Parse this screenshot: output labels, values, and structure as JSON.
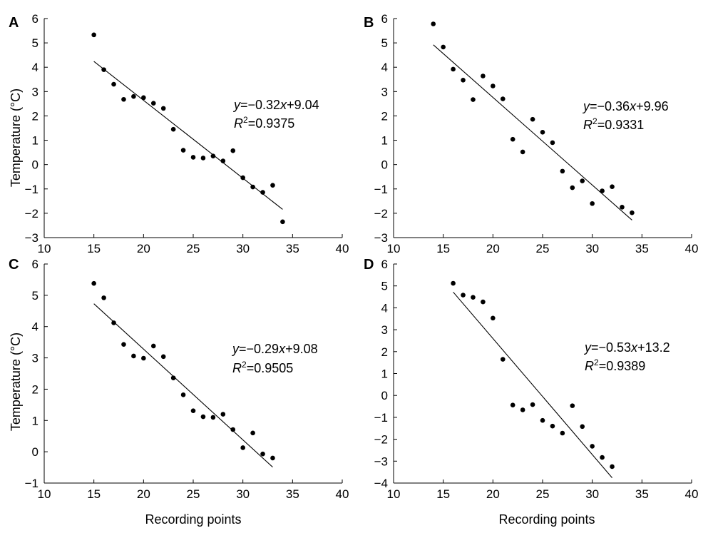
{
  "x_axis_label": "Recording points",
  "y_axis_label": "Temperature (°C)",
  "chart_data": [
    {
      "panel": "A",
      "type": "scatter",
      "xlim": [
        10,
        40
      ],
      "ylim": [
        -3,
        6
      ],
      "x_ticks": [
        10,
        15,
        20,
        25,
        30,
        35,
        40
      ],
      "y_ticks": [
        -3,
        -2,
        -1,
        0,
        1,
        2,
        3,
        4,
        5,
        6
      ],
      "x": [
        15,
        16,
        17,
        18,
        19,
        20,
        21,
        22,
        23,
        24,
        25,
        26,
        27,
        28,
        29,
        30,
        31,
        32,
        33,
        34
      ],
      "y": [
        5.33,
        3.9,
        3.3,
        2.68,
        2.8,
        2.75,
        2.52,
        2.31,
        1.45,
        0.59,
        0.3,
        0.27,
        0.35,
        0.15,
        0.57,
        -0.54,
        -0.92,
        -1.14,
        -0.85,
        -2.35
      ],
      "fit": {
        "slope": -0.32,
        "intercept": 9.04,
        "x_range": [
          15,
          34
        ]
      },
      "equation": {
        "y": "y",
        "eq": "=−0.32",
        "x": "x",
        "rest": "+9.04"
      },
      "r2": {
        "r": "R",
        "sup": "2",
        "value": "=0.9375"
      }
    },
    {
      "panel": "B",
      "type": "scatter",
      "xlim": [
        10,
        40
      ],
      "ylim": [
        -3,
        6
      ],
      "x_ticks": [
        10,
        15,
        20,
        25,
        30,
        35,
        40
      ],
      "y_ticks": [
        -3,
        -2,
        -1,
        0,
        1,
        2,
        3,
        4,
        5,
        6
      ],
      "x": [
        14,
        15,
        16,
        17,
        18,
        19,
        20,
        21,
        22,
        23,
        24,
        25,
        26,
        27,
        28,
        29,
        30,
        31,
        32,
        33,
        34
      ],
      "y": [
        5.78,
        4.83,
        3.92,
        3.47,
        2.67,
        3.64,
        3.23,
        2.7,
        1.04,
        0.52,
        1.86,
        1.33,
        0.9,
        -0.27,
        -0.95,
        -0.67,
        -1.6,
        -1.08,
        -0.91,
        -1.75,
        -1.98
      ],
      "fit": {
        "slope": -0.36,
        "intercept": 9.96,
        "x_range": [
          14,
          34
        ]
      },
      "equation": {
        "y": "y",
        "eq": "=−0.36",
        "x": "x",
        "rest": "+9.96"
      },
      "r2": {
        "r": "R",
        "sup": "2",
        "value": "=0.9331"
      }
    },
    {
      "panel": "C",
      "type": "scatter",
      "xlim": [
        10,
        40
      ],
      "ylim": [
        -1,
        6
      ],
      "x_ticks": [
        10,
        15,
        20,
        25,
        30,
        35,
        40
      ],
      "y_ticks": [
        -1,
        0,
        1,
        2,
        3,
        4,
        5,
        6
      ],
      "x": [
        15,
        16,
        17,
        18,
        19,
        20,
        21,
        22,
        23,
        24,
        25,
        26,
        27,
        28,
        29,
        30,
        31,
        32,
        33
      ],
      "y": [
        5.38,
        4.92,
        4.12,
        3.43,
        3.06,
        2.99,
        3.38,
        3.04,
        2.36,
        1.82,
        1.31,
        1.12,
        1.1,
        1.2,
        0.71,
        0.13,
        0.6,
        -0.07,
        -0.2
      ],
      "fit": {
        "slope": -0.29,
        "intercept": 9.08,
        "x_range": [
          15,
          33
        ]
      },
      "equation": {
        "y": "y",
        "eq": "=−0.29",
        "x": "x",
        "rest": "+9.08"
      },
      "r2": {
        "r": "R",
        "sup": "2",
        "value": "=0.9505"
      }
    },
    {
      "panel": "D",
      "type": "scatter",
      "xlim": [
        10,
        40
      ],
      "ylim": [
        -4,
        6
      ],
      "x_ticks": [
        10,
        15,
        20,
        25,
        30,
        35,
        40
      ],
      "y_ticks": [
        -4,
        -3,
        -2,
        -1,
        0,
        1,
        2,
        3,
        4,
        5,
        6
      ],
      "x": [
        16,
        17,
        18,
        19,
        20,
        21,
        22,
        23,
        24,
        25,
        26,
        27,
        28,
        29,
        30,
        31,
        32
      ],
      "y": [
        5.12,
        4.58,
        4.48,
        4.27,
        3.53,
        1.65,
        -0.44,
        -0.66,
        -0.42,
        -1.14,
        -1.4,
        -1.72,
        -0.47,
        -1.42,
        -2.32,
        -2.83,
        -3.25
      ],
      "fit": {
        "slope": -0.53,
        "intercept": 13.2,
        "x_range": [
          16,
          32
        ]
      },
      "equation": {
        "y": "y",
        "eq": "=−0.53",
        "x": "x",
        "rest": "+13.2"
      },
      "r2": {
        "r": "R",
        "sup": "2",
        "value": "=0.9389"
      }
    }
  ]
}
